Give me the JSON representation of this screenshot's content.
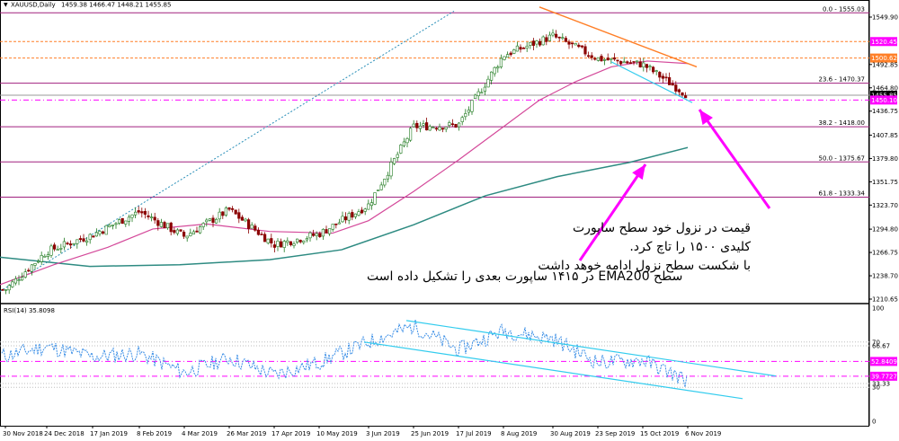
{
  "header": {
    "symbol": "XAUUSD,Daily",
    "ohlc": "1459.38 1466.47 1448.21 1455.85",
    "rsi_label": "RSI(14) 35.8098"
  },
  "annotations": {
    "note1": [
      "قیمت در نزول خود سطح ساپورت",
      "کلیدی ۱۵۰۰ را تاچ کرد.",
      "با شکست سطح نزول ادامه خوهد داشت"
    ],
    "note2": "سطح EMA200 در ۱۴۱۵ ساپورت بعدی را تشکیل داده است"
  },
  "colors": {
    "candle_up": "#1f7a1f",
    "candle_down": "#8b0000",
    "ema_short": "#d4499a",
    "ema200": "#2e8b82",
    "fib": "#a0207f",
    "orange": "#ff7f27",
    "cyan": "#33ccee",
    "magenta": "#ff00ff",
    "rsi_line": "#3a8ee6"
  },
  "chart_data": [
    {
      "type": "candlestick",
      "title": "XAUUSD,Daily",
      "ylim": [
        1208,
        1577
      ],
      "price_axis_ticks": [
        "1549.90",
        "1520.45",
        "1500.62",
        "1492.85",
        "1464.80",
        "1455.85",
        "1450.10",
        "1436.75",
        "1407.85",
        "1379.80",
        "1351.75",
        "1323.70",
        "1294.80",
        "1266.75",
        "1238.70",
        "1210.65"
      ],
      "fibonacci_levels": [
        {
          "label": "0.0 - 1555.03",
          "value": 1555.03
        },
        {
          "label": "23.6 - 1470.37",
          "value": 1470.37
        },
        {
          "label": "38.2 - 1418.00",
          "value": 1418.0
        },
        {
          "label": "50.0 - 1375.67",
          "value": 1375.67
        },
        {
          "label": "61.8 - 1333.34",
          "value": 1333.34
        }
      ],
      "horizontal_levels": [
        {
          "label": "1520.45",
          "value": 1520.45
        },
        {
          "label": "1500.62",
          "value": 1500.62
        },
        {
          "label": "1450.10",
          "value": 1450.1
        }
      ],
      "x_labels": [
        "30 Nov 2018",
        "24 Dec 2018",
        "17 Jan 2019",
        "8 Feb 2019",
        "4 Mar 2019",
        "26 Mar 2019",
        "17 Apr 2019",
        "10 May 2019",
        "3 Jun 2019",
        "25 Jun 2019",
        "17 Jul 2019",
        "8 Aug 2019",
        "30 Aug 2019",
        "23 Sep 2019",
        "15 Oct 2019",
        "6 Nov 2019"
      ],
      "close_path": [
        [
          "30 Nov 2018",
          1222
        ],
        [
          "24 Dec 2018",
          1268
        ],
        [
          "17 Jan 2019",
          1288
        ],
        [
          "8 Feb 2019",
          1316
        ],
        [
          "4 Mar 2019",
          1286
        ],
        [
          "26 Mar 2019",
          1318
        ],
        [
          "17 Apr 2019",
          1276
        ],
        [
          "10 May 2019",
          1289
        ],
        [
          "3 Jun 2019",
          1324
        ],
        [
          "25 Jun 2019",
          1418
        ],
        [
          "17 Jul 2019",
          1420
        ],
        [
          "8 Aug 2019",
          1504
        ],
        [
          "30 Aug 2019",
          1527
        ],
        [
          "23 Sep 2019",
          1500
        ],
        [
          "15 Oct 2019",
          1493
        ],
        [
          "6 Nov 2019",
          1455.85
        ]
      ],
      "indicators": [
        "EMA",
        "EMA200"
      ]
    },
    {
      "type": "line",
      "title": "RSI(14) 35.8098",
      "ylim": [
        0,
        100
      ],
      "rsi_axis_ticks": [
        "100",
        "70",
        "66.67",
        "52.8409",
        "39.7727",
        "33.33",
        "30",
        "0"
      ],
      "levels": [
        70,
        66.67,
        52.8409,
        39.7727,
        33.33,
        30
      ],
      "x_labels": [
        "30 Nov 2018",
        "24 Dec 2018",
        "17 Jan 2019",
        "8 Feb 2019",
        "4 Mar 2019",
        "26 Mar 2019",
        "17 Apr 2019",
        "10 May 2019",
        "3 Jun 2019",
        "25 Jun 2019",
        "17 Jul 2019",
        "8 Aug 2019",
        "30 Aug 2019",
        "23 Sep 2019",
        "15 Oct 2019",
        "6 Nov 2019"
      ],
      "values": [
        [
          "30 Nov 2018",
          58
        ],
        [
          "24 Dec 2018",
          66
        ],
        [
          "17 Jan 2019",
          57
        ],
        [
          "8 Feb 2019",
          60
        ],
        [
          "4 Mar 2019",
          43
        ],
        [
          "26 Mar 2019",
          56
        ],
        [
          "17 Apr 2019",
          41
        ],
        [
          "10 May 2019",
          52
        ],
        [
          "3 Jun 2019",
          70
        ],
        [
          "25 Jun 2019",
          84
        ],
        [
          "17 Jul 2019",
          63
        ],
        [
          "8 Aug 2019",
          80
        ],
        [
          "30 Aug 2019",
          73
        ],
        [
          "23 Sep 2019",
          52
        ],
        [
          "15 Oct 2019",
          54
        ],
        [
          "6 Nov 2019",
          35.81
        ]
      ]
    }
  ]
}
